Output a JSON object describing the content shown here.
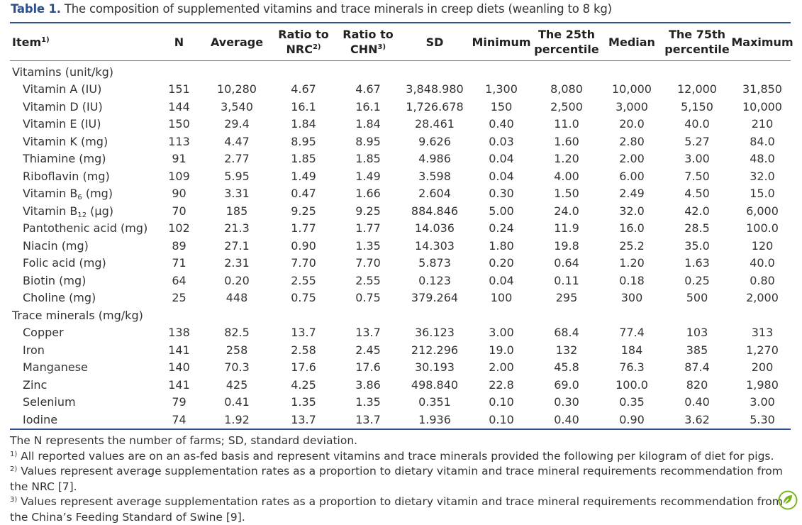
{
  "caption": {
    "label": "Table 1.",
    "text": " The composition of supplemented vitamins and trace minerals in creep diets (weanling to 8 kg)"
  },
  "header": {
    "item": "Item",
    "item_sup": "1)",
    "n": "N",
    "average": "Average",
    "nrc_l1": "Ratio to",
    "nrc_l2": "NRC",
    "nrc_sup": "2)",
    "chn_l1": "Ratio to",
    "chn_l2": "CHN",
    "chn_sup": "3)",
    "sd": "SD",
    "minimum": "Minimum",
    "p25_l1": "The 25th",
    "p25_l2": "percentile",
    "median": "Median",
    "p75_l1": "The 75th",
    "p75_l2": "percentile",
    "maximum": "Maximum"
  },
  "groups": {
    "vitamins": "Vitamins (unit/kg)",
    "minerals": "Trace minerals (mg/kg)"
  },
  "rows": {
    "vitA": {
      "name": "Vitamin A (IU)",
      "v": [
        "151",
        "10,280",
        "4.67",
        "4.67",
        "3,848.980",
        "1,300",
        "8,080",
        "10,000",
        "12,000",
        "31,850"
      ]
    },
    "vitD": {
      "name": "Vitamin D (IU)",
      "v": [
        "144",
        "3,540",
        "16.1",
        "16.1",
        "1,726.678",
        "150",
        "2,500",
        "3,000",
        "5,150",
        "10,000"
      ]
    },
    "vitE": {
      "name": "Vitamin E (IU)",
      "v": [
        "150",
        "29.4",
        "1.84",
        "1.84",
        "28.461",
        "0.40",
        "11.0",
        "20.0",
        "40.0",
        "210"
      ]
    },
    "vitK": {
      "name": "Vitamin K (mg)",
      "v": [
        "113",
        "4.47",
        "8.95",
        "8.95",
        "9.626",
        "0.03",
        "1.60",
        "2.80",
        "5.27",
        "84.0"
      ]
    },
    "thiamine": {
      "name": "Thiamine (mg)",
      "v": [
        "91",
        "2.77",
        "1.85",
        "1.85",
        "4.986",
        "0.04",
        "1.20",
        "2.00",
        "3.00",
        "48.0"
      ]
    },
    "riboflavin": {
      "name": "Riboflavin (mg)",
      "v": [
        "109",
        "5.95",
        "1.49",
        "1.49",
        "3.598",
        "0.04",
        "4.00",
        "6.00",
        "7.50",
        "32.0"
      ]
    },
    "vitB6": {
      "name_pre": "Vitamin B",
      "name_sub": "6",
      "name_post": " (mg)",
      "v": [
        "90",
        "3.31",
        "0.47",
        "1.66",
        "2.604",
        "0.30",
        "1.50",
        "2.49",
        "4.50",
        "15.0"
      ]
    },
    "vitB12": {
      "name_pre": "Vitamin B",
      "name_sub": "12",
      "name_post": " (μg)",
      "v": [
        "70",
        "185",
        "9.25",
        "9.25",
        "884.846",
        "5.00",
        "24.0",
        "32.0",
        "42.0",
        "6,000"
      ]
    },
    "pantothenic": {
      "name": "Pantothenic acid (mg)",
      "v": [
        "102",
        "21.3",
        "1.77",
        "1.77",
        "14.036",
        "0.24",
        "11.9",
        "16.0",
        "28.5",
        "100.0"
      ]
    },
    "niacin": {
      "name": "Niacin (mg)",
      "v": [
        "89",
        "27.1",
        "0.90",
        "1.35",
        "14.303",
        "1.80",
        "19.8",
        "25.2",
        "35.0",
        "120"
      ]
    },
    "folic": {
      "name": "Folic acid (mg)",
      "v": [
        "71",
        "2.31",
        "7.70",
        "7.70",
        "5.873",
        "0.20",
        "0.64",
        "1.20",
        "1.63",
        "40.0"
      ]
    },
    "biotin": {
      "name": "Biotin (mg)",
      "v": [
        "64",
        "0.20",
        "2.55",
        "2.55",
        "0.123",
        "0.04",
        "0.11",
        "0.18",
        "0.25",
        "0.80"
      ]
    },
    "choline": {
      "name": "Choline (mg)",
      "v": [
        "25",
        "448",
        "0.75",
        "0.75",
        "379.264",
        "100",
        "295",
        "300",
        "500",
        "2,000"
      ]
    },
    "copper": {
      "name": "Copper",
      "v": [
        "138",
        "82.5",
        "13.7",
        "13.7",
        "36.123",
        "3.00",
        "68.4",
        "77.4",
        "103",
        "313"
      ]
    },
    "iron": {
      "name": "Iron",
      "v": [
        "141",
        "258",
        "2.58",
        "2.45",
        "212.296",
        "19.0",
        "132",
        "184",
        "385",
        "1,270"
      ]
    },
    "manganese": {
      "name": "Manganese",
      "v": [
        "140",
        "70.3",
        "17.6",
        "17.6",
        "30.193",
        "2.00",
        "45.8",
        "76.3",
        "87.4",
        "200"
      ]
    },
    "zinc": {
      "name": "Zinc",
      "v": [
        "141",
        "425",
        "4.25",
        "3.86",
        "498.840",
        "22.8",
        "69.0",
        "100.0",
        "820",
        "1,980"
      ]
    },
    "selenium": {
      "name": "Selenium",
      "v": [
        "79",
        "0.41",
        "1.35",
        "1.35",
        "0.351",
        "0.10",
        "0.30",
        "0.35",
        "0.40",
        "3.00"
      ]
    },
    "iodine": {
      "name": "Iodine",
      "v": [
        "74",
        "1.92",
        "13.7",
        "13.7",
        "1.936",
        "0.10",
        "0.40",
        "0.90",
        "3.62",
        "5.30"
      ]
    }
  },
  "footnotes": {
    "general": "The N represents the number of farms; SD, standard deviation.",
    "n1_mark": "1)",
    "n1": " All reported values are on an as-fed basis and represent vitamins and trace minerals provided the following per kilogram of diet for pigs.",
    "n2_mark": "2)",
    "n2": " Values represent average supplementation rates as a proportion to dietary vitamin and trace mineral requirements recommendation from the NRC [7].",
    "n3_mark": "3)",
    "n3": " Values represent average supplementation rates as a proportion to dietary vitamin and trace mineral requirements recommendation from the China’s Feeding Standard of Swine [9]."
  },
  "colors": {
    "accent": "#2b4f8f",
    "badge": "#7ab51d"
  },
  "icons": {
    "corner_badge": "leaf-badge-icon"
  }
}
